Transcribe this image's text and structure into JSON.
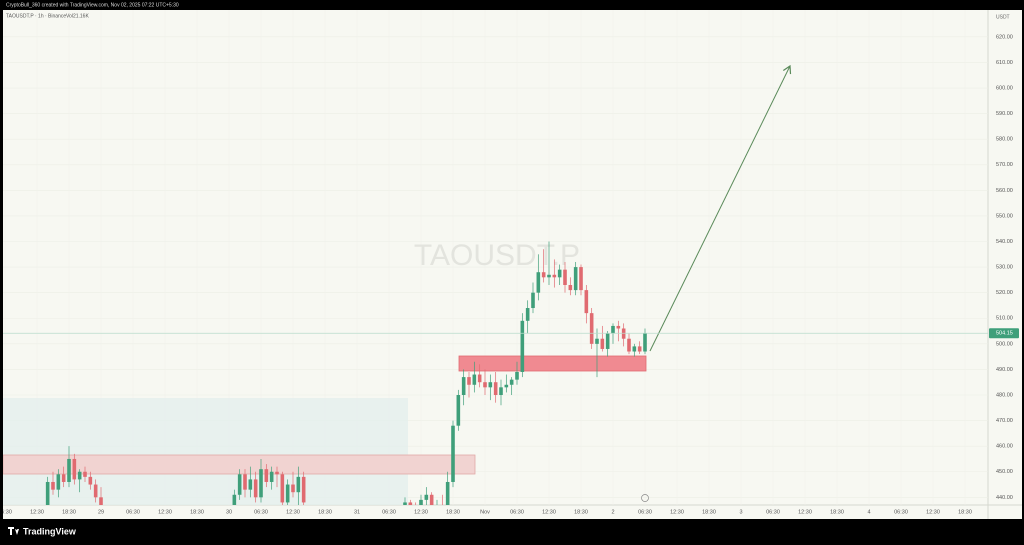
{
  "header": {
    "credit": "CryptoBull_360 created with TradingView.com, Nov 02, 2025 07:22 UTC+5:30"
  },
  "footer": {
    "brand": "TradingView"
  },
  "chart_data": {
    "type": "candlestick",
    "title": "TAOUSDT.P",
    "legend": {
      "symbol": "TAOUSDT.P · 1h · Binance",
      "volume": "Vol21.16K"
    },
    "y_unit": "USDT",
    "up_color": "#3f9f7a",
    "down_color": "#e06a70",
    "last_price": 504.15,
    "ylim": [
      437,
      630.5
    ],
    "yticks": [
      {
        "value": 440,
        "label": "440.00"
      },
      {
        "value": 450,
        "label": "450.00"
      },
      {
        "value": 460,
        "label": "460.00"
      },
      {
        "value": 470,
        "label": "470.00"
      },
      {
        "value": 480,
        "label": "480.00"
      },
      {
        "value": 490,
        "label": "490.00"
      },
      {
        "value": 500,
        "label": "500.00"
      },
      {
        "value": 510,
        "label": "510.00"
      },
      {
        "value": 520,
        "label": "520.00"
      },
      {
        "value": 530,
        "label": "530.00"
      },
      {
        "value": 540,
        "label": "540.00"
      },
      {
        "value": 550,
        "label": "550.00"
      },
      {
        "value": 560,
        "label": "560.00"
      },
      {
        "value": 570,
        "label": "570.00"
      },
      {
        "value": 580,
        "label": "580.00"
      },
      {
        "value": 590,
        "label": "590.00"
      },
      {
        "value": 600,
        "label": "600.00"
      },
      {
        "value": 610,
        "label": "610.00"
      },
      {
        "value": 620,
        "label": "620.00"
      }
    ],
    "xtick_labels": [
      "06:30",
      "12:30",
      "18:30",
      "29",
      "06:30",
      "12:30",
      "18:30",
      "30",
      "06:30",
      "12:30",
      "18:30",
      "31",
      "06:30",
      "12:30",
      "18:30",
      "Nov",
      "06:30",
      "12:30",
      "18:30",
      "2",
      "06:30",
      "12:30",
      "18:30",
      "3",
      "06:30",
      "12:30",
      "18:30",
      "4",
      "06:30",
      "12:30",
      "18:30"
    ],
    "candles": [
      null,
      null,
      null,
      null,
      null,
      null,
      null,
      null,
      [
        436,
        448,
        434,
        446
      ],
      [
        446,
        450,
        441,
        443
      ],
      [
        443,
        451,
        440,
        449
      ],
      [
        449,
        452,
        444,
        446
      ],
      [
        446,
        460,
        444,
        455
      ],
      [
        455,
        457,
        445,
        447
      ],
      [
        447,
        451,
        442,
        450
      ],
      [
        450,
        452,
        446,
        448
      ],
      [
        448,
        450,
        443,
        445
      ],
      [
        445,
        447,
        438,
        440
      ],
      [
        440,
        444,
        432,
        434
      ],
      null,
      null,
      null,
      null,
      null,
      null,
      null,
      null,
      null,
      null,
      null,
      null,
      null,
      null,
      null,
      null,
      null,
      null,
      null,
      null,
      null,
      null,
      null,
      null,
      [
        436,
        443,
        433,
        441
      ],
      [
        441,
        451,
        439,
        449
      ],
      [
        449,
        451,
        440,
        443
      ],
      [
        443,
        452,
        440,
        447
      ],
      [
        447,
        450,
        438,
        440
      ],
      [
        440,
        455,
        438,
        451
      ],
      [
        451,
        453,
        444,
        446
      ],
      [
        446,
        452,
        443,
        450
      ],
      [
        450,
        452,
        444,
        449
      ],
      [
        449,
        450,
        436,
        438
      ],
      [
        438,
        447,
        434,
        445
      ],
      [
        445,
        450,
        440,
        442
      ],
      [
        442,
        452,
        437,
        448
      ],
      [
        448,
        450,
        436,
        438
      ],
      null,
      null,
      null,
      null,
      null,
      null,
      null,
      null,
      null,
      null,
      null,
      null,
      null,
      null,
      null,
      null,
      null,
      null,
      [
        436,
        440,
        432,
        438
      ],
      [
        438,
        439,
        434,
        436
      ],
      [
        436,
        438,
        432,
        434
      ],
      [
        434,
        441,
        432,
        439
      ],
      [
        439,
        444,
        437,
        441
      ],
      [
        441,
        442,
        434,
        436
      ],
      [
        436,
        439,
        433,
        437
      ],
      [
        437,
        441,
        432,
        435
      ],
      [
        435,
        450,
        433,
        446
      ],
      [
        446,
        470,
        444,
        468
      ],
      [
        468,
        482,
        466,
        480
      ],
      [
        480,
        490,
        476,
        487
      ],
      [
        487,
        489,
        479,
        484
      ],
      [
        484,
        493,
        481,
        488
      ],
      [
        488,
        492,
        483,
        485
      ],
      [
        485,
        490,
        480,
        483
      ],
      [
        483,
        488,
        478,
        485
      ],
      [
        485,
        489,
        477,
        480
      ],
      [
        480,
        486,
        476,
        483
      ],
      [
        483,
        488,
        481,
        484
      ],
      [
        484,
        487,
        480,
        486
      ],
      [
        486,
        493,
        484,
        489
      ],
      [
        489,
        512,
        487,
        509
      ],
      [
        509,
        517,
        504,
        514
      ],
      [
        514,
        524,
        512,
        520
      ],
      [
        520,
        535,
        517,
        528
      ],
      [
        528,
        537,
        524,
        526
      ],
      [
        526,
        540,
        523,
        527
      ],
      [
        527,
        533,
        522,
        526
      ],
      [
        526,
        531,
        523,
        529
      ],
      [
        529,
        532,
        520,
        523
      ],
      [
        523,
        526,
        519,
        521
      ],
      [
        521,
        532,
        519,
        530
      ],
      [
        530,
        531,
        519,
        521
      ],
      [
        521,
        523,
        508,
        512
      ],
      [
        512,
        514,
        498,
        500
      ],
      [
        500,
        506,
        487,
        502
      ],
      [
        502,
        507,
        497,
        498
      ],
      [
        498,
        505,
        495,
        504
      ],
      [
        504,
        508,
        500,
        507
      ],
      [
        507,
        509,
        501,
        506
      ],
      [
        506,
        508,
        499,
        502
      ],
      [
        502,
        504,
        496,
        497
      ],
      [
        497,
        500,
        495,
        499
      ],
      [
        499,
        501,
        496,
        497
      ],
      [
        497,
        506,
        496,
        504.15
      ]
    ]
  }
}
